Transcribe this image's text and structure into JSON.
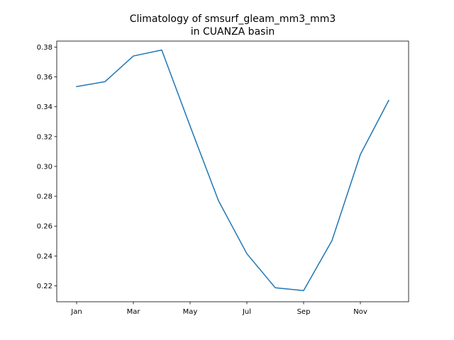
{
  "chart_data": {
    "type": "line",
    "title_lines": [
      "Climatology of smsurf_gleam_mm3_mm3",
      "in CUANZA basin"
    ],
    "xlabel": "",
    "ylabel": "",
    "x": [
      "Jan",
      "Feb",
      "Mar",
      "Apr",
      "May",
      "Jun",
      "Jul",
      "Aug",
      "Sep",
      "Oct",
      "Nov",
      "Dec"
    ],
    "x_tick_labels": [
      "Jan",
      "Mar",
      "May",
      "Jul",
      "Sep",
      "Nov"
    ],
    "series": [
      {
        "values": [
          0.3535,
          0.3568,
          0.374,
          0.378,
          0.327,
          0.277,
          0.2415,
          0.2187,
          0.2168,
          0.2503,
          0.308,
          0.3443
        ],
        "color": "#1f77b4"
      }
    ],
    "ylim": [
      0.2093,
      0.384
    ],
    "y_ticks": [
      0.22,
      0.24,
      0.26,
      0.28,
      0.3,
      0.32,
      0.34,
      0.36,
      0.38
    ],
    "y_tick_labels": [
      "0.22",
      "0.24",
      "0.26",
      "0.28",
      "0.30",
      "0.32",
      "0.34",
      "0.36",
      "0.38"
    ],
    "grid": false,
    "legend": "none"
  }
}
